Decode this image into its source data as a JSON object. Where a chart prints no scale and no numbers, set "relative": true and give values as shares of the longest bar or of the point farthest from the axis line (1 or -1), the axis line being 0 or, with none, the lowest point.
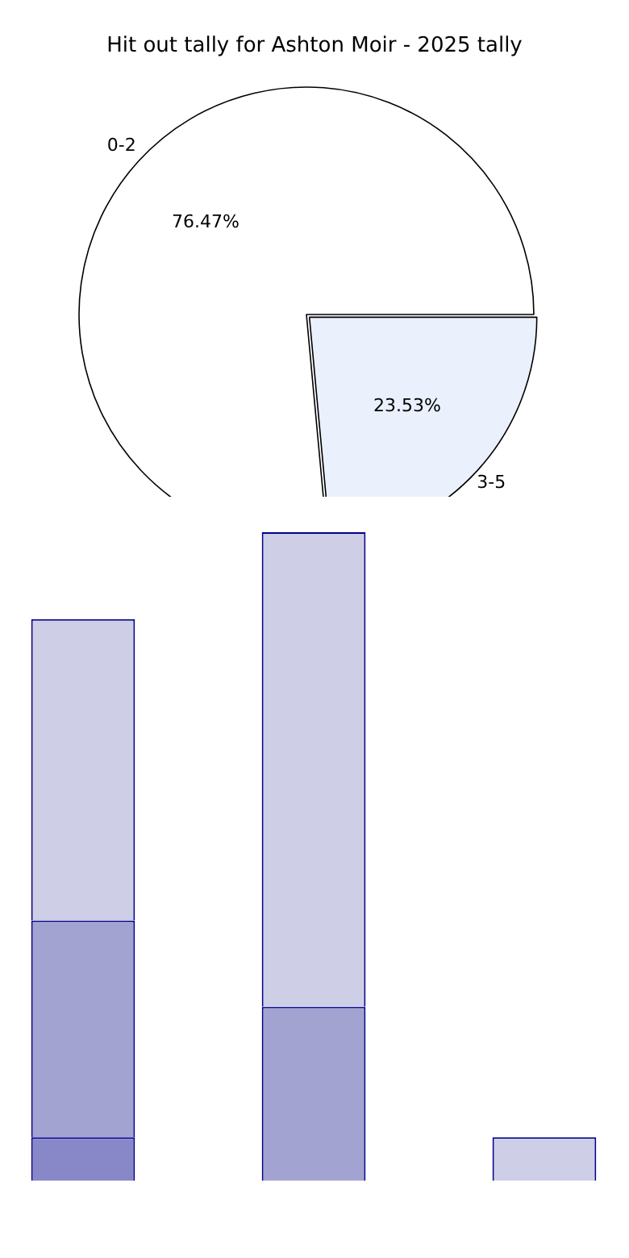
{
  "chart_data": [
    {
      "type": "pie",
      "title": "Hit out tally for Ashton Moir - 2025 tally",
      "categories": [
        "0-2",
        "3-5"
      ],
      "values": [
        76.47,
        23.53
      ],
      "value_labels": [
        "76.47%",
        "23.53%"
      ],
      "colors": [
        "#ffffff",
        "#eaf0fc"
      ],
      "legend": false
    },
    {
      "type": "bar",
      "stacked": true,
      "relative": true,
      "legend": false,
      "categories": [
        null,
        null,
        null
      ],
      "series": [
        {
          "color": "#8888c8",
          "values": [
            0.067,
            0,
            0
          ]
        },
        {
          "color": "#a3a3d1",
          "values": [
            0.334,
            0.268,
            0
          ]
        },
        {
          "color": "#cecee6",
          "values": [
            0.465,
            0.732,
            0.067
          ]
        }
      ]
    }
  ]
}
